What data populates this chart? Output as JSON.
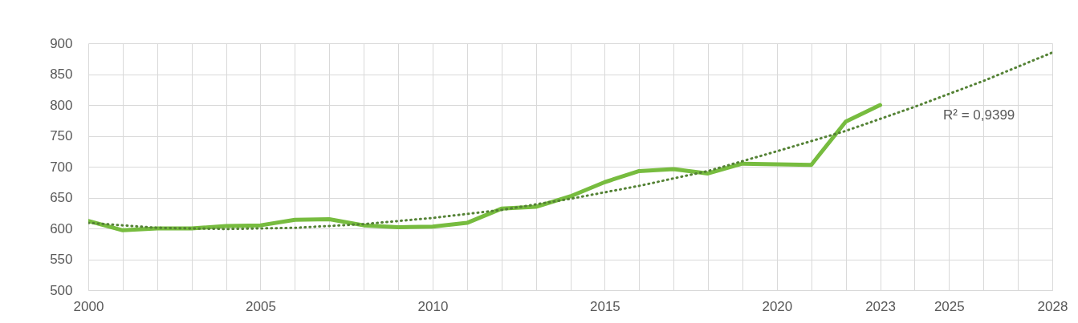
{
  "chart_data": {
    "type": "line",
    "x": [
      2000,
      2001,
      2002,
      2003,
      2004,
      2005,
      2006,
      2007,
      2008,
      2009,
      2010,
      2011,
      2012,
      2013,
      2014,
      2015,
      2016,
      2017,
      2018,
      2019,
      2020,
      2021,
      2022,
      2023
    ],
    "series": [
      {
        "type": "line",
        "color": "#77bc3f",
        "line_style": "solid",
        "values": [
          612,
          597,
          600,
          600,
          604,
          605,
          614,
          615,
          605,
          602,
          603,
          609,
          632,
          635,
          652,
          675,
          693,
          696,
          689,
          705,
          704,
          703,
          773,
          800
        ]
      },
      {
        "type": "line",
        "color": "#548235",
        "line_style": "dotted",
        "x": [
          2000,
          2002,
          2004,
          2006,
          2008,
          2010,
          2012,
          2014,
          2016,
          2018,
          2020,
          2022,
          2024,
          2026,
          2028
        ],
        "values": [
          609,
          601,
          599,
          601,
          607,
          617,
          630,
          648,
          669,
          693,
          725,
          758,
          797,
          839,
          885
        ]
      }
    ],
    "annotations": [
      "R² = 0,9399"
    ],
    "xlim": [
      2000,
      2028
    ],
    "xticks": [
      2000,
      {
        "value": 2001,
        "label": null
      },
      {
        "value": 2002,
        "label": null
      },
      {
        "value": 2003,
        "label": null
      },
      {
        "value": 2004,
        "label": null
      },
      2005,
      {
        "value": 2006,
        "label": null
      },
      {
        "value": 2007,
        "label": null
      },
      {
        "value": 2008,
        "label": null
      },
      {
        "value": 2009,
        "label": null
      },
      2010,
      {
        "value": 2011,
        "label": null
      },
      {
        "value": 2012,
        "label": null
      },
      {
        "value": 2013,
        "label": null
      },
      {
        "value": 2014,
        "label": null
      },
      2015,
      {
        "value": 2016,
        "label": null
      },
      {
        "value": 2017,
        "label": null
      },
      {
        "value": 2018,
        "label": null
      },
      {
        "value": 2019,
        "label": null
      },
      2020,
      {
        "value": 2021,
        "label": null
      },
      {
        "value": 2022,
        "label": null
      },
      2023,
      {
        "value": 2024,
        "label": null
      },
      2025,
      {
        "value": 2026,
        "label": null
      },
      {
        "value": 2027,
        "label": null
      },
      2028
    ],
    "ylim": [
      500,
      900
    ],
    "yticks": [
      500,
      550,
      600,
      650,
      700,
      750,
      800,
      850,
      900
    ],
    "grid": true,
    "legend": false,
    "marker": "none"
  }
}
